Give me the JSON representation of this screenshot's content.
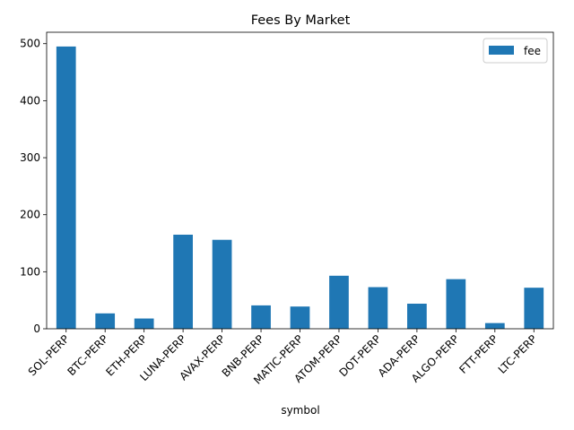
{
  "chart_data": {
    "type": "bar",
    "title": "Fees By Market",
    "xlabel": "symbol",
    "ylabel": "",
    "categories": [
      "SOL-PERP",
      "BTC-PERP",
      "ETH-PERP",
      "LUNA-PERP",
      "AVAX-PERP",
      "BNB-PERP",
      "MATIC-PERP",
      "ATOM-PERP",
      "DOT-PERP",
      "ADA-PERP",
      "ALGO-PERP",
      "FTT-PERP",
      "LTC-PERP"
    ],
    "series": [
      {
        "name": "fee",
        "color": "#1f77b4",
        "values": [
          495,
          27,
          18,
          165,
          156,
          41,
          39,
          93,
          73,
          44,
          87,
          10,
          72
        ]
      }
    ],
    "ylim": [
      0,
      520
    ],
    "yticks": [
      0,
      100,
      200,
      300,
      400,
      500
    ],
    "grid": false,
    "legend_position": "top-right"
  }
}
